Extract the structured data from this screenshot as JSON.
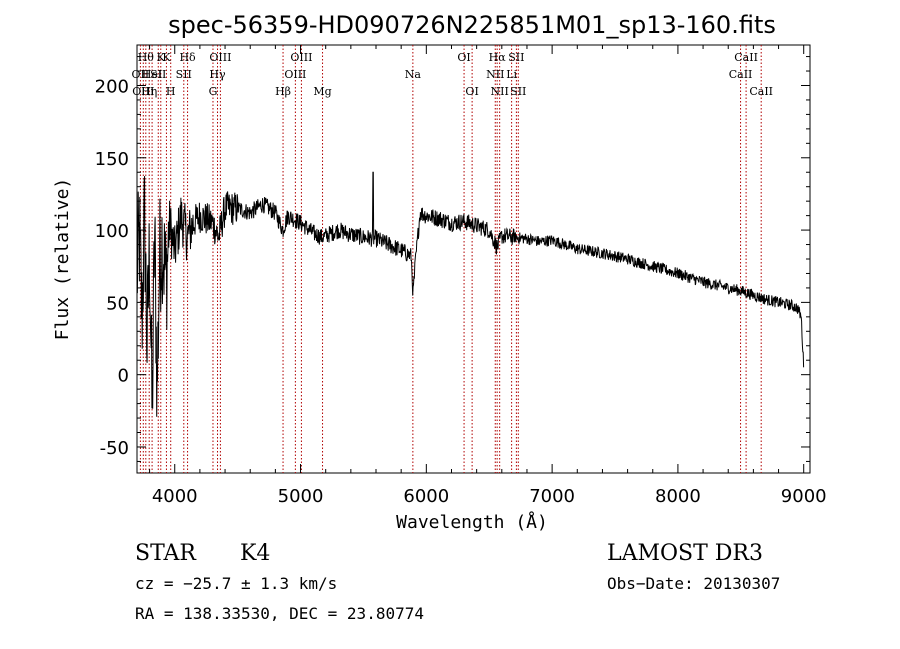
{
  "chart_data": {
    "type": "line",
    "title": "spec-56359-HD090726N225851M01_sp13-160.fits",
    "xlabel": "Wavelength (Å)",
    "ylabel": "Flux (relative)",
    "xlim": [
      3700,
      9050
    ],
    "ylim": [
      -68,
      228
    ],
    "xticks": [
      4000,
      5000,
      6000,
      7000,
      8000,
      9000
    ],
    "yticks": [
      -50,
      0,
      50,
      100,
      150,
      200
    ],
    "series": [
      {
        "name": "spectrum",
        "anchors": [
          [
            3700,
            70
          ],
          [
            3720,
            95
          ],
          [
            3740,
            40
          ],
          [
            3760,
            110
          ],
          [
            3780,
            20
          ],
          [
            3800,
            90
          ],
          [
            3820,
            -30
          ],
          [
            3840,
            100
          ],
          [
            3860,
            -10
          ],
          [
            3880,
            80
          ],
          [
            3900,
            95
          ],
          [
            3930,
            65
          ],
          [
            3960,
            105
          ],
          [
            4000,
            85
          ],
          [
            4050,
            110
          ],
          [
            4100,
            95
          ],
          [
            4150,
            105
          ],
          [
            4200,
            110
          ],
          [
            4300,
            105
          ],
          [
            4350,
            95
          ],
          [
            4400,
            115
          ],
          [
            4500,
            115
          ],
          [
            4600,
            112
          ],
          [
            4700,
            118
          ],
          [
            4800,
            112
          ],
          [
            4860,
            100
          ],
          [
            4900,
            110
          ],
          [
            5000,
            105
          ],
          [
            5100,
            98
          ],
          [
            5170,
            95
          ],
          [
            5200,
            96
          ],
          [
            5300,
            100
          ],
          [
            5400,
            97
          ],
          [
            5500,
            95
          ],
          [
            5600,
            94
          ],
          [
            5700,
            90
          ],
          [
            5800,
            86
          ],
          [
            5880,
            82
          ],
          [
            5895,
            55
          ],
          [
            5910,
            75
          ],
          [
            5950,
            112
          ],
          [
            6000,
            110
          ],
          [
            6100,
            108
          ],
          [
            6200,
            105
          ],
          [
            6300,
            106
          ],
          [
            6400,
            103
          ],
          [
            6500,
            100
          ],
          [
            6563,
            88
          ],
          [
            6600,
            96
          ],
          [
            6700,
            95
          ],
          [
            6800,
            94
          ],
          [
            6900,
            92
          ],
          [
            7000,
            93
          ],
          [
            7200,
            87
          ],
          [
            7400,
            84
          ],
          [
            7600,
            80
          ],
          [
            7800,
            75
          ],
          [
            8000,
            70
          ],
          [
            8200,
            64
          ],
          [
            8400,
            60
          ],
          [
            8500,
            58
          ],
          [
            8600,
            55
          ],
          [
            8700,
            52
          ],
          [
            8800,
            50
          ],
          [
            8900,
            48
          ],
          [
            8950,
            46
          ],
          [
            8980,
            40
          ],
          [
            9000,
            5
          ]
        ]
      }
    ],
    "lines": [
      {
        "wave": 3727,
        "label": "OII",
        "row": 2
      },
      {
        "wave": 3750,
        "label": "OIII",
        "row": 3
      },
      {
        "wave": 3770,
        "label": "Hθ",
        "row": 1
      },
      {
        "wave": 3797,
        "label": "Hη",
        "row": 3
      },
      {
        "wave": 3820,
        "label": "HeI",
        "row": 2
      },
      {
        "wave": 3869,
        "label": "SII",
        "row": 2
      },
      {
        "wave": 3889,
        "label": "K",
        "row": 1
      },
      {
        "wave": 3934,
        "label": "K",
        "row": 1
      },
      {
        "wave": 3968,
        "label": "H",
        "row": 3
      },
      {
        "wave": 4072,
        "label": "SII",
        "row": 2
      },
      {
        "wave": 4102,
        "label": "Hδ",
        "row": 1
      },
      {
        "wave": 4304,
        "label": "G",
        "row": 3
      },
      {
        "wave": 4340,
        "label": "Hγ",
        "row": 2
      },
      {
        "wave": 4363,
        "label": "OIII",
        "row": 1
      },
      {
        "wave": 4861,
        "label": "Hβ",
        "row": 3
      },
      {
        "wave": 4959,
        "label": "OIII",
        "row": 2
      },
      {
        "wave": 5007,
        "label": "OIII",
        "row": 1
      },
      {
        "wave": 5175,
        "label": "Mg",
        "row": 3
      },
      {
        "wave": 5893,
        "label": "Na",
        "row": 2
      },
      {
        "wave": 6300,
        "label": "OI",
        "row": 1
      },
      {
        "wave": 6364,
        "label": "OI",
        "row": 3
      },
      {
        "wave": 6548,
        "label": "NII",
        "row": 2
      },
      {
        "wave": 6563,
        "label": "Hα",
        "row": 1
      },
      {
        "wave": 6583,
        "label": "NII",
        "row": 3
      },
      {
        "wave": 6678,
        "label": "Li",
        "row": 2
      },
      {
        "wave": 6716,
        "label": "SII",
        "row": 1
      },
      {
        "wave": 6731,
        "label": "SII",
        "row": 3
      },
      {
        "wave": 8498,
        "label": "CaII",
        "row": 2
      },
      {
        "wave": 8542,
        "label": "CaII",
        "row": 1
      },
      {
        "wave": 8662,
        "label": "CaII",
        "row": 3
      }
    ],
    "line_color": "#b00000",
    "curve_color": "#000000",
    "annotations": {
      "class": "STAR",
      "subclass": "K4",
      "survey": "LAMOST DR3",
      "cz": "cz = −25.7 ± 1.3 km/s",
      "obs_date": "Obs−Date: 20130307",
      "radec": "RA = 138.33530, DEC =  23.80774"
    }
  }
}
